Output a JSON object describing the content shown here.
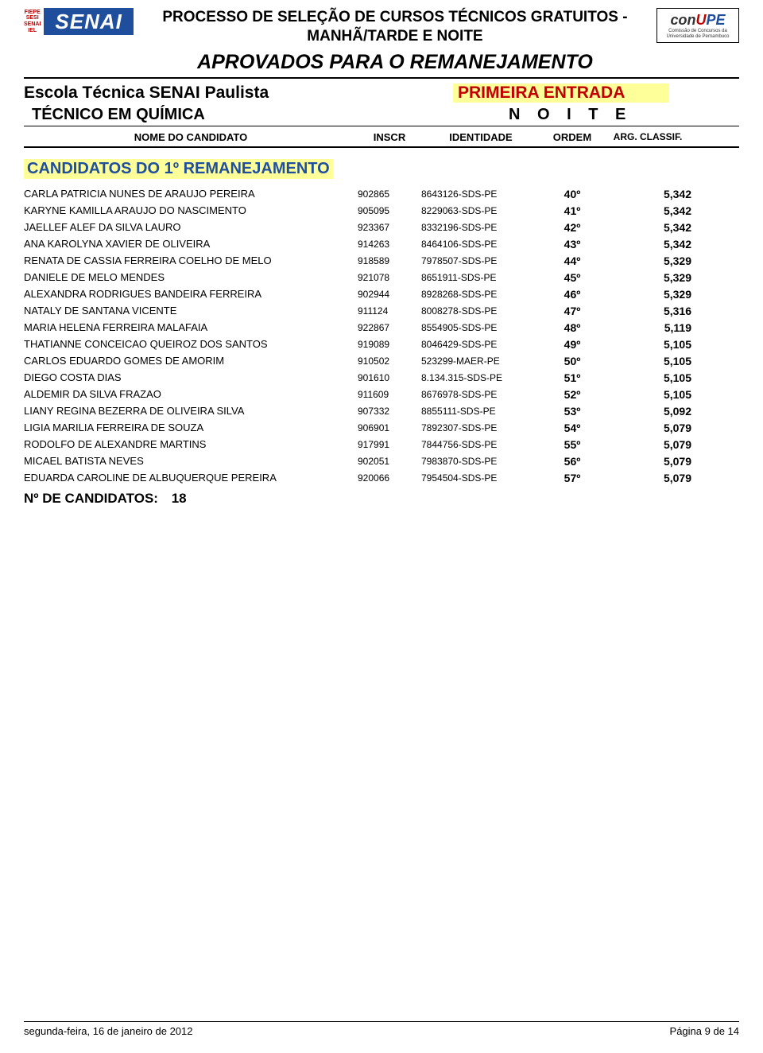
{
  "logo": {
    "fiepe": "FIEPE\nSESI\nSENAI\nIEL",
    "senai": "SENAI"
  },
  "header": {
    "processo": "PROCESSO DE SELEÇÃO DE CURSOS TÉCNICOS GRATUITOS - MANHÃ/TARDE E NOITE",
    "aprovados": "APROVADOS PARA O REMANEJAMENTO"
  },
  "conupe": {
    "text_black": "con",
    "text_red": "U",
    "text_blue": "PE",
    "sub": "Comissão de Concursos da Universidade de Pernambuco"
  },
  "escola": "Escola Técnica SENAI Paulista",
  "entrada": "PRIMEIRA ENTRADA",
  "curso": "TÉCNICO EM QUÍMICA",
  "turno": "N O I T E",
  "colHeaders": {
    "nome": "NOME DO CANDIDATO",
    "inscr": "INSCR",
    "ident": "IDENTIDADE",
    "ordem": "ORDEM",
    "classif": "ARG. CLASSIF."
  },
  "sectionTitle": "CANDIDATOS DO 1º REMANEJAMENTO",
  "rows": [
    {
      "name": "CARLA PATRICIA NUNES DE ARAUJO PEREIRA",
      "inscr": "902865",
      "ident": "8643126-SDS-PE",
      "ordem": "40º",
      "classif": "5,342"
    },
    {
      "name": "KARYNE KAMILLA ARAUJO DO NASCIMENTO",
      "inscr": "905095",
      "ident": "8229063-SDS-PE",
      "ordem": "41º",
      "classif": "5,342"
    },
    {
      "name": "JAELLEF ALEF DA SILVA LAURO",
      "inscr": "923367",
      "ident": "8332196-SDS-PE",
      "ordem": "42º",
      "classif": "5,342"
    },
    {
      "name": "ANA KAROLYNA XAVIER DE OLIVEIRA",
      "inscr": "914263",
      "ident": "8464106-SDS-PE",
      "ordem": "43º",
      "classif": "5,342"
    },
    {
      "name": "RENATA DE CASSIA FERREIRA COELHO DE MELO",
      "inscr": "918589",
      "ident": "7978507-SDS-PE",
      "ordem": "44º",
      "classif": "5,329"
    },
    {
      "name": "DANIELE DE MELO MENDES",
      "inscr": "921078",
      "ident": "8651911-SDS-PE",
      "ordem": "45º",
      "classif": "5,329"
    },
    {
      "name": "ALEXANDRA RODRIGUES BANDEIRA FERREIRA",
      "inscr": "902944",
      "ident": "8928268-SDS-PE",
      "ordem": "46º",
      "classif": "5,329"
    },
    {
      "name": "NATALY DE SANTANA VICENTE",
      "inscr": "911124",
      "ident": "8008278-SDS-PE",
      "ordem": "47º",
      "classif": "5,316"
    },
    {
      "name": "MARIA HELENA FERREIRA MALAFAIA",
      "inscr": "922867",
      "ident": "8554905-SDS-PE",
      "ordem": "48º",
      "classif": "5,119"
    },
    {
      "name": "THATIANNE CONCEICAO QUEIROZ DOS SANTOS",
      "inscr": "919089",
      "ident": "8046429-SDS-PE",
      "ordem": "49º",
      "classif": "5,105"
    },
    {
      "name": "CARLOS EDUARDO GOMES DE AMORIM",
      "inscr": "910502",
      "ident": "523299-MAER-PE",
      "ordem": "50º",
      "classif": "5,105"
    },
    {
      "name": "DIEGO COSTA DIAS",
      "inscr": "901610",
      "ident": "8.134.315-SDS-PE",
      "ordem": "51º",
      "classif": "5,105"
    },
    {
      "name": "ALDEMIR DA SILVA FRAZAO",
      "inscr": "911609",
      "ident": "8676978-SDS-PE",
      "ordem": "52º",
      "classif": "5,105"
    },
    {
      "name": "LIANY REGINA BEZERRA DE OLIVEIRA SILVA",
      "inscr": "907332",
      "ident": "8855111-SDS-PE",
      "ordem": "53º",
      "classif": "5,092"
    },
    {
      "name": "LIGIA MARILIA FERREIRA DE SOUZA",
      "inscr": "906901",
      "ident": "7892307-SDS-PE",
      "ordem": "54º",
      "classif": "5,079"
    },
    {
      "name": "RODOLFO DE ALEXANDRE MARTINS",
      "inscr": "917991",
      "ident": "7844756-SDS-PE",
      "ordem": "55º",
      "classif": "5,079"
    },
    {
      "name": "MICAEL BATISTA NEVES",
      "inscr": "902051",
      "ident": "7983870-SDS-PE",
      "ordem": "56º",
      "classif": "5,079"
    },
    {
      "name": "EDUARDA CAROLINE DE ALBUQUERQUE PEREIRA",
      "inscr": "920066",
      "ident": "7954504-SDS-PE",
      "ordem": "57º",
      "classif": "5,079"
    }
  ],
  "nCandLabel": "Nº DE CANDIDATOS:",
  "nCandValue": "18",
  "footer": {
    "date": "segunda-feira, 16 de janeiro de 2012",
    "page": "Página 9 de 14"
  },
  "style": {
    "highlight_bg": "#ffff99",
    "brand_blue": "#1f4e9c",
    "brand_red": "#c00000",
    "page_bg": "#ffffff",
    "text_color": "#000000"
  }
}
